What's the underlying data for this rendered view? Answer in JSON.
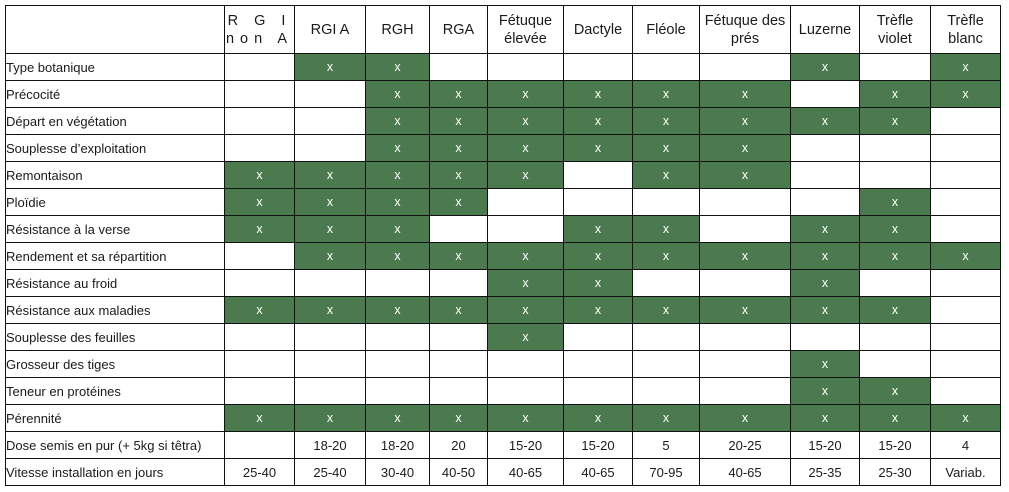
{
  "columns": [
    "R G I non A",
    "RGI A",
    "RGH",
    "RGA",
    "Fétuque élevée",
    "Dactyle",
    "Fléole",
    "Fétuque des prés",
    "Luzerne",
    "Trèfle violet",
    "Trèfle blanc"
  ],
  "mark": "x",
  "colors": {
    "on": "#4a7a4d",
    "off": "#ffffff",
    "border": "#111111"
  },
  "criteria": [
    {
      "label": "Type botanique",
      "marks": [
        0,
        1,
        1,
        0,
        0,
        0,
        0,
        0,
        1,
        0,
        1
      ]
    },
    {
      "label": "Précocité",
      "marks": [
        0,
        0,
        1,
        1,
        1,
        1,
        1,
        1,
        0,
        1,
        1
      ]
    },
    {
      "label": "Départ en végétation",
      "marks": [
        0,
        0,
        1,
        1,
        1,
        1,
        1,
        1,
        1,
        1,
        0
      ]
    },
    {
      "label": "Souplesse d’exploitation",
      "marks": [
        0,
        0,
        1,
        1,
        1,
        1,
        1,
        1,
        0,
        0,
        0
      ]
    },
    {
      "label": "Remontaison",
      "marks": [
        1,
        1,
        1,
        1,
        1,
        0,
        1,
        1,
        0,
        0,
        0
      ]
    },
    {
      "label": "Ploïdie",
      "marks": [
        1,
        1,
        1,
        1,
        0,
        0,
        0,
        0,
        0,
        1,
        0
      ]
    },
    {
      "label": "Résistance à la verse",
      "marks": [
        1,
        1,
        1,
        0,
        0,
        1,
        1,
        0,
        1,
        1,
        0
      ]
    },
    {
      "label": "Rendement et sa répartition",
      "marks": [
        0,
        1,
        1,
        1,
        1,
        1,
        1,
        1,
        1,
        1,
        1
      ]
    },
    {
      "label": "Résistance au froid",
      "marks": [
        0,
        0,
        0,
        0,
        1,
        1,
        0,
        0,
        1,
        0,
        0
      ]
    },
    {
      "label": "Résistance aux maladies",
      "marks": [
        1,
        1,
        1,
        1,
        1,
        1,
        1,
        1,
        1,
        1,
        0
      ]
    },
    {
      "label": "Souplesse des feuilles",
      "marks": [
        0,
        0,
        0,
        0,
        1,
        0,
        0,
        0,
        0,
        0,
        0
      ]
    },
    {
      "label": "Grosseur des tiges",
      "marks": [
        0,
        0,
        0,
        0,
        0,
        0,
        0,
        0,
        1,
        0,
        0
      ]
    },
    {
      "label": "Teneur en protéines",
      "marks": [
        0,
        0,
        0,
        0,
        0,
        0,
        0,
        0,
        1,
        1,
        0
      ]
    },
    {
      "label": "Pérennité",
      "marks": [
        1,
        1,
        1,
        1,
        1,
        1,
        1,
        1,
        1,
        1,
        1
      ]
    }
  ],
  "value_rows": [
    {
      "label": "Dose semis en pur (+ 5kg si têtra)",
      "values": [
        "",
        "18-20",
        "18-20",
        "20",
        "15-20",
        "15-20",
        "5",
        "20-25",
        "15-20",
        "15-20",
        "4"
      ]
    },
    {
      "label": "Vitesse installation en jours",
      "values": [
        "25-40",
        "25-40",
        "30-40",
        "40-50",
        "40-65",
        "40-65",
        "70-95",
        "40-65",
        "25-35",
        "25-30",
        "Variab."
      ]
    }
  ]
}
